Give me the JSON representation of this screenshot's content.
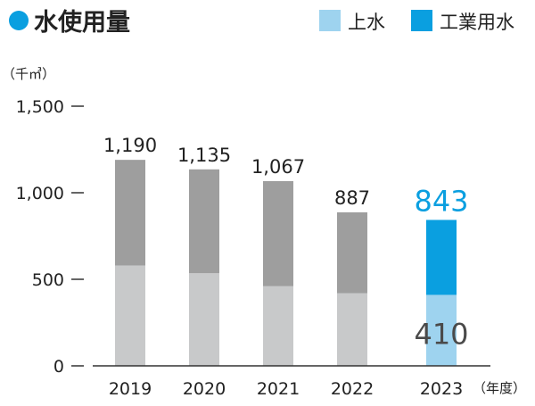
{
  "title": "水使用量",
  "unit_label": "（千㎥）",
  "x_unit_label": "（年度）",
  "legend": {
    "items": [
      {
        "label": "上水",
        "color": "#9ed3ef"
      },
      {
        "label": "工業用水",
        "color": "#0a9fe0"
      }
    ],
    "placement": "top-right"
  },
  "colors": {
    "title_dot": "#0a9fe0",
    "past_upper": "#9e9e9e",
    "past_lower": "#c8c9ca",
    "current_upper": "#0a9fe0",
    "current_lower": "#9ed3ef",
    "current_total_text": "#0a9fe0",
    "current_lower_text": "#4a4a4a"
  },
  "chart_data": {
    "type": "bar",
    "stacked": true,
    "categories": [
      "2019",
      "2020",
      "2021",
      "2022",
      "2023"
    ],
    "series": [
      {
        "name": "上水",
        "values": [
          580,
          535,
          460,
          420,
          410
        ]
      },
      {
        "name": "工業用水",
        "values": [
          610,
          600,
          607,
          467,
          433
        ]
      }
    ],
    "totals": [
      1190,
      1135,
      1067,
      887,
      843
    ],
    "total_labels": [
      "1,190",
      "1,135",
      "1,067",
      "887",
      "843"
    ],
    "lower_labels": [
      "",
      "",
      "",
      "",
      "410"
    ],
    "yticks": [
      0,
      500,
      1000,
      1500
    ],
    "ytick_labels": [
      "0",
      "500",
      "1,000",
      "1,500"
    ],
    "ylim": [
      0,
      1500
    ],
    "grid": false
  }
}
